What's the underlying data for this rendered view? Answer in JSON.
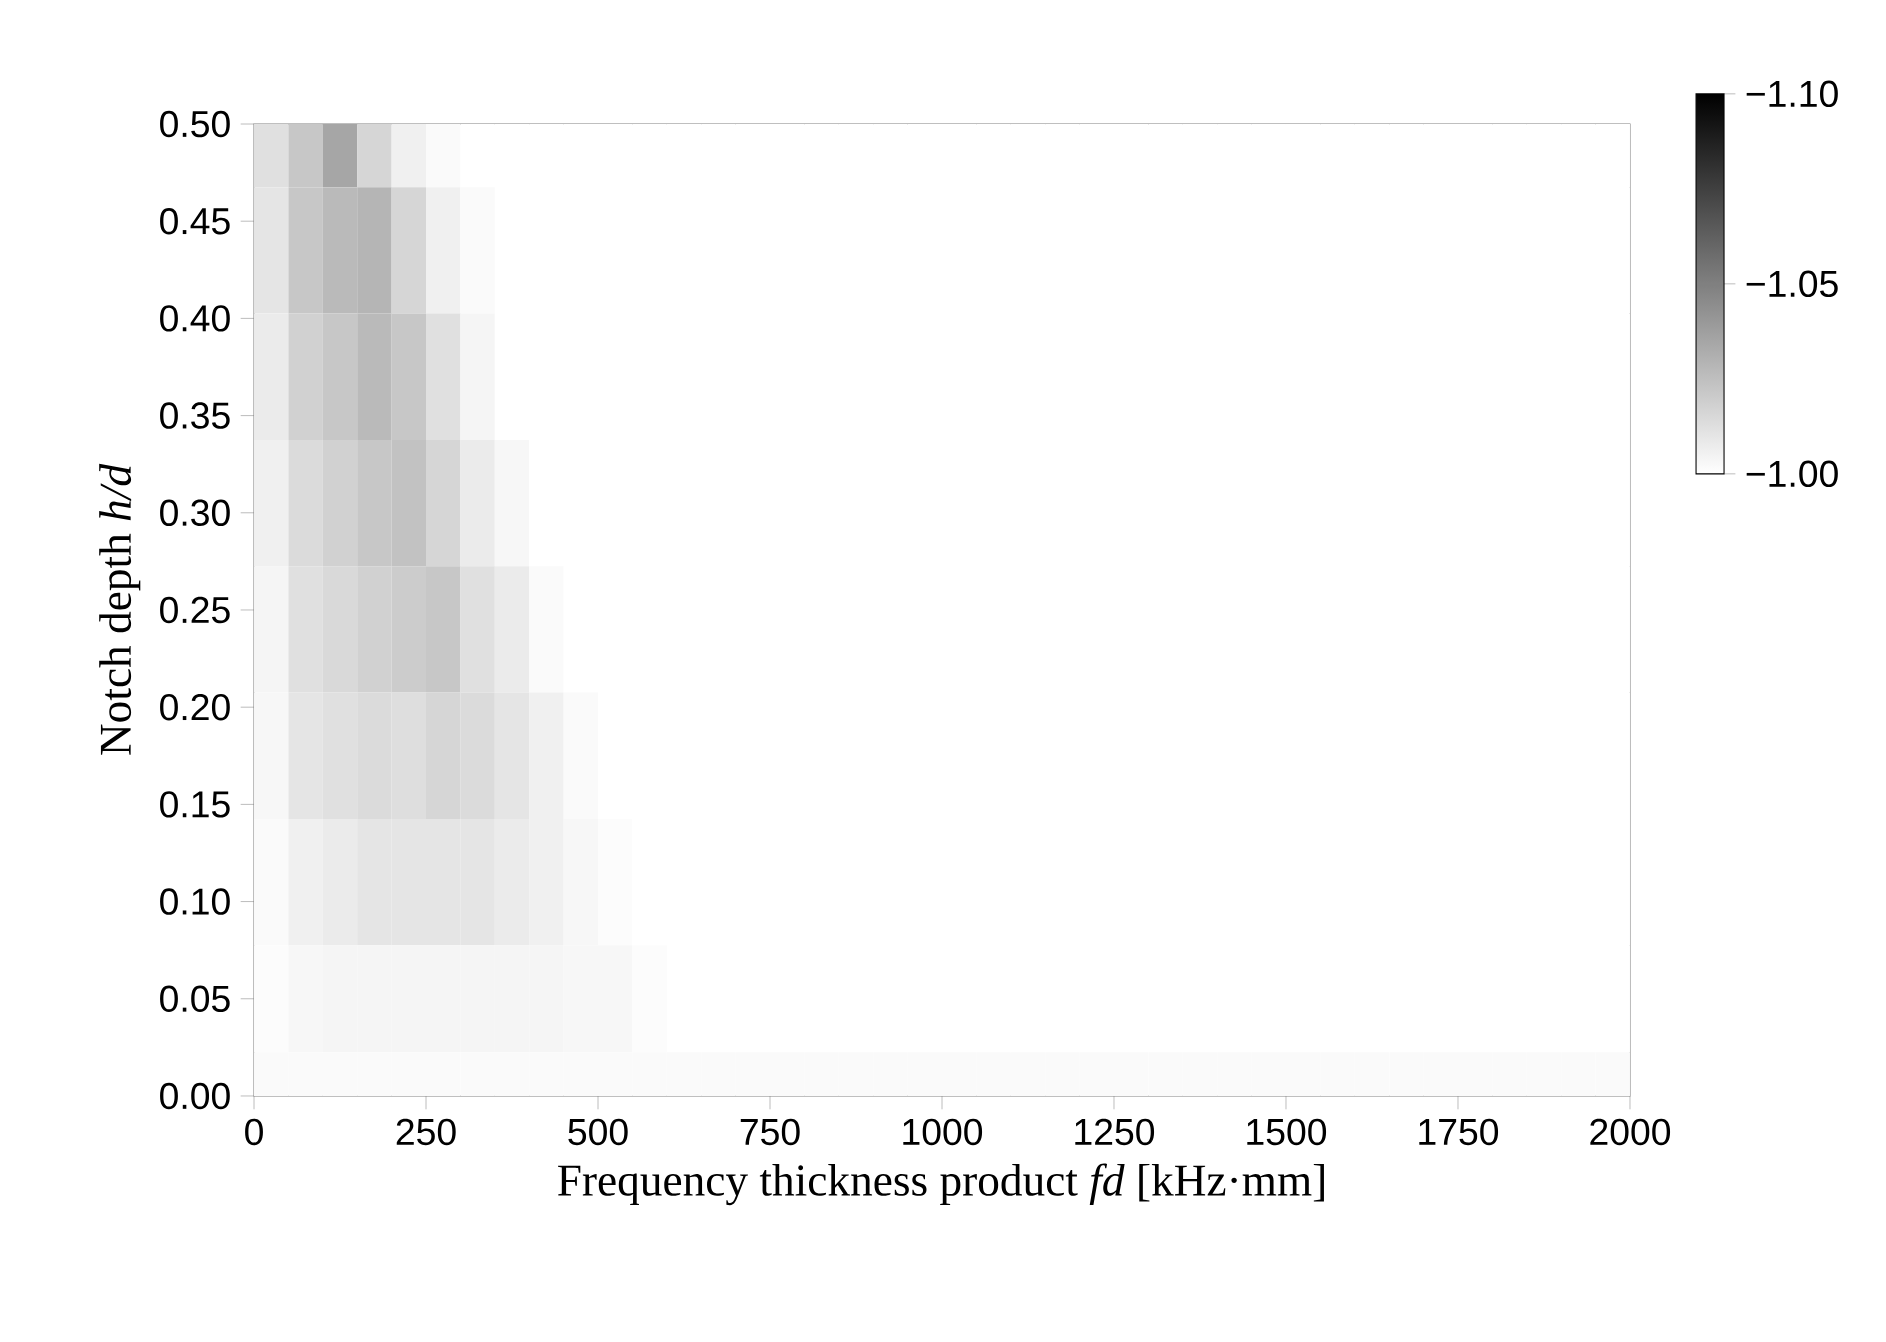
{
  "chart_data": {
    "type": "heatmap",
    "xlabel": "Frequency thickness product *fd* [kHz·mm]",
    "ylabel": "Notch depth *h/d*",
    "x": [
      25,
      75,
      125,
      175,
      225,
      275,
      325,
      375,
      425,
      475,
      525,
      575,
      625,
      675,
      725,
      775,
      825,
      875,
      925,
      975,
      1025,
      1075,
      1125,
      1175,
      1225,
      1275,
      1325,
      1375,
      1425,
      1475,
      1525,
      1575,
      1625,
      1675,
      1725,
      1775,
      1825,
      1875,
      1925,
      1975
    ],
    "y": [
      0.5,
      0.435,
      0.37,
      0.305,
      0.24,
      0.175,
      0.11,
      0.045,
      0
    ],
    "cells": [
      [
        -1.012,
        -1.022,
        -1.035,
        -1.016,
        -1.006,
        -1.002,
        -1,
        -1,
        -1,
        -1,
        -1,
        -1,
        -1,
        -1,
        -1,
        -1,
        -1,
        -1,
        -1,
        -1,
        -1,
        -1,
        -1,
        -1,
        -1,
        -1,
        -1,
        -1,
        -1,
        -1,
        -1,
        -1,
        -1,
        -1,
        -1,
        -1,
        -1,
        -1,
        -1,
        -1
      ],
      [
        -1.01,
        -1.022,
        -1.027,
        -1.029,
        -1.016,
        -1.006,
        -1.002,
        -1,
        -1,
        -1,
        -1,
        -1,
        -1,
        -1,
        -1,
        -1,
        -1,
        -1,
        -1,
        -1,
        -1,
        -1,
        -1,
        -1,
        -1,
        -1,
        -1,
        -1,
        -1,
        -1,
        -1,
        -1,
        -1,
        -1,
        -1,
        -1,
        -1,
        -1,
        -1,
        -1
      ],
      [
        -1.008,
        -1.018,
        -1.022,
        -1.027,
        -1.022,
        -1.012,
        -1.004,
        -1,
        -1,
        -1,
        -1,
        -1,
        -1,
        -1,
        -1,
        -1,
        -1,
        -1,
        -1,
        -1,
        -1,
        -1,
        -1,
        -1,
        -1,
        -1,
        -1,
        -1,
        -1,
        -1,
        -1,
        -1,
        -1,
        -1,
        -1,
        -1,
        -1,
        -1,
        -1,
        -1
      ],
      [
        -1.006,
        -1.014,
        -1.018,
        -1.022,
        -1.024,
        -1.016,
        -1.008,
        -1.003,
        -1,
        -1,
        -1,
        -1,
        -1,
        -1,
        -1,
        -1,
        -1,
        -1,
        -1,
        -1,
        -1,
        -1,
        -1,
        -1,
        -1,
        -1,
        -1,
        -1,
        -1,
        -1,
        -1,
        -1,
        -1,
        -1,
        -1,
        -1,
        -1,
        -1,
        -1,
        -1
      ],
      [
        -1.004,
        -1.012,
        -1.015,
        -1.018,
        -1.02,
        -1.022,
        -1.012,
        -1.008,
        -1.002,
        -1,
        -1,
        -1,
        -1,
        -1,
        -1,
        -1,
        -1,
        -1,
        -1,
        -1,
        -1,
        -1,
        -1,
        -1,
        -1,
        -1,
        -1,
        -1,
        -1,
        -1,
        -1,
        -1,
        -1,
        -1,
        -1,
        -1,
        -1,
        -1,
        -1,
        -1
      ],
      [
        -1.003,
        -1.01,
        -1.012,
        -1.014,
        -1.013,
        -1.016,
        -1.014,
        -1.01,
        -1.006,
        -1.002,
        -1,
        -1,
        -1,
        -1,
        -1,
        -1,
        -1,
        -1,
        -1,
        -1,
        -1,
        -1,
        -1,
        -1,
        -1,
        -1,
        -1,
        -1,
        -1,
        -1,
        -1,
        -1,
        -1,
        -1,
        -1,
        -1,
        -1,
        -1,
        -1,
        -1
      ],
      [
        -1.002,
        -1.006,
        -1.008,
        -1.01,
        -1.01,
        -1.01,
        -1.01,
        -1.008,
        -1.006,
        -1.003,
        -1.001,
        -1,
        -1,
        -1,
        -1,
        -1,
        -1,
        -1,
        -1,
        -1,
        -1,
        -1,
        -1,
        -1,
        -1,
        -1,
        -1,
        -1,
        -1,
        -1,
        -1,
        -1,
        -1,
        -1,
        -1,
        -1,
        -1,
        -1,
        -1,
        -1
      ],
      [
        -1.001,
        -1.003,
        -1.004,
        -1.004,
        -1.004,
        -1.004,
        -1.004,
        -1.004,
        -1.004,
        -1.003,
        -1.003,
        -1.001,
        -1,
        -1,
        -1,
        -1,
        -1,
        -1,
        -1,
        -1,
        -1,
        -1,
        -1,
        -1,
        -1,
        -1,
        -1,
        -1,
        -1,
        -1,
        -1,
        -1,
        -1,
        -1,
        -1,
        -1,
        -1,
        -1,
        -1,
        -1
      ],
      [
        -1.002,
        -1.002,
        -1.002,
        -1.002,
        -1.002,
        -1.002,
        -1.002,
        -1.002,
        -1.002,
        -1.002,
        -1.002,
        -1.002,
        -1.002,
        -1.002,
        -1.002,
        -1.002,
        -1.002,
        -1.002,
        -1.002,
        -1.002,
        -1.002,
        -1.002,
        -1.002,
        -1.002,
        -1.002,
        -1.002,
        -1.002,
        -1.002,
        -1.002,
        -1.002,
        -1.002,
        -1.002,
        -1.002,
        -1.002,
        -1.002,
        -1.002,
        -1.002,
        -1.002,
        -1.002,
        -1.002
      ]
    ],
    "xlim": [
      0,
      2000
    ],
    "ylim": [
      0,
      0.5
    ],
    "xticks": [
      0,
      250,
      500,
      750,
      1000,
      1250,
      1500,
      1750,
      2000
    ],
    "yticks": [
      {
        "value": 0,
        "label": "0.00"
      },
      {
        "value": 0.05,
        "label": "0.05"
      },
      {
        "value": 0.1,
        "label": "0.10"
      },
      {
        "value": 0.15,
        "label": "0.15"
      },
      {
        "value": 0.2,
        "label": "0.20"
      },
      {
        "value": 0.25,
        "label": "0.25"
      },
      {
        "value": 0.3,
        "label": "0.30"
      },
      {
        "value": 0.35,
        "label": "0.35"
      },
      {
        "value": 0.4,
        "label": "0.40"
      },
      {
        "value": 0.45,
        "label": "0.45"
      },
      {
        "value": 0.5,
        "label": "0.50"
      }
    ],
    "clim": [
      -1.0,
      -1.1
    ],
    "cticks": [
      {
        "value": -1.1,
        "label": "−1.10"
      },
      {
        "value": -1.05,
        "label": "−1.05"
      },
      {
        "value": -1.0,
        "label": "−1.00"
      }
    ]
  }
}
